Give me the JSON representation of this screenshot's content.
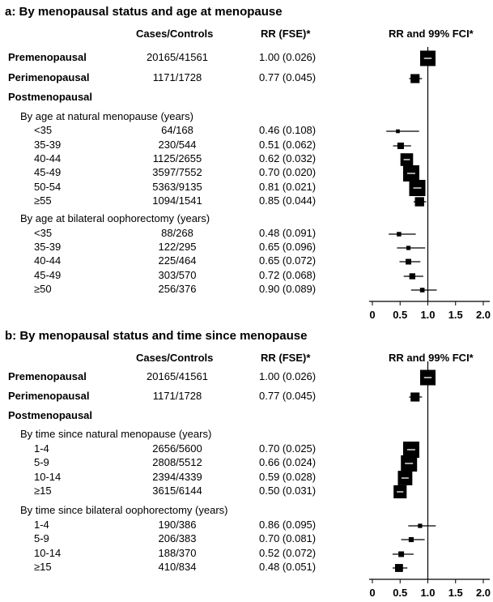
{
  "columns": {
    "cases": "Cases/Controls",
    "rr": "RR (FSE)*",
    "fci": "RR and 99% FCI*"
  },
  "chart_data": [
    {
      "type": "forest",
      "title": "a:  By menopausal status and age at menopause",
      "xlim": [
        0,
        2.0
      ],
      "xticks": [
        "0",
        "0.5",
        "1.0",
        "1.5",
        "2.0"
      ],
      "rows": [
        {
          "label": "Premenopausal",
          "kind": "main",
          "cases": "20165/41561",
          "rr_text": "1.00 (0.026)",
          "rr": 1.0,
          "fse": 0.026
        },
        {
          "label": "Perimenopausal",
          "kind": "main",
          "cases": "1171/1728",
          "rr_text": "0.77 (0.045)",
          "rr": 0.77,
          "fse": 0.045
        },
        {
          "label": "Postmenopausal",
          "kind": "section"
        },
        {
          "label": "By age at natural menopause (years)",
          "kind": "sub"
        },
        {
          "label": "<35",
          "kind": "item",
          "cases": "64/168",
          "rr_text": "0.46 (0.108)",
          "rr": 0.46,
          "fse": 0.108
        },
        {
          "label": "35-39",
          "kind": "item",
          "cases": "230/544",
          "rr_text": "0.51 (0.062)",
          "rr": 0.51,
          "fse": 0.062
        },
        {
          "label": "40-44",
          "kind": "item",
          "cases": "1125/2655",
          "rr_text": "0.62 (0.032)",
          "rr": 0.62,
          "fse": 0.032
        },
        {
          "label": "45-49",
          "kind": "item",
          "cases": "3597/7552",
          "rr_text": "0.70 (0.020)",
          "rr": 0.7,
          "fse": 0.02
        },
        {
          "label": "50-54",
          "kind": "item",
          "cases": "5363/9135",
          "rr_text": "0.81 (0.021)",
          "rr": 0.81,
          "fse": 0.021
        },
        {
          "label": "≥55",
          "kind": "item",
          "cases": "1094/1541",
          "rr_text": "0.85 (0.044)",
          "rr": 0.85,
          "fse": 0.044
        },
        {
          "label": "By age at bilateral oophorectomy (years)",
          "kind": "sub"
        },
        {
          "label": "<35",
          "kind": "item",
          "cases": "88/268",
          "rr_text": "0.48 (0.091)",
          "rr": 0.48,
          "fse": 0.091
        },
        {
          "label": "35-39",
          "kind": "item",
          "cases": "122/295",
          "rr_text": "0.65 (0.096)",
          "rr": 0.65,
          "fse": 0.096
        },
        {
          "label": "40-44",
          "kind": "item",
          "cases": "225/464",
          "rr_text": "0.65 (0.072)",
          "rr": 0.65,
          "fse": 0.072
        },
        {
          "label": "45-49",
          "kind": "item",
          "cases": "303/570",
          "rr_text": "0.72 (0.068)",
          "rr": 0.72,
          "fse": 0.068
        },
        {
          "label": "≥50",
          "kind": "item",
          "cases": "256/376",
          "rr_text": "0.90 (0.089)",
          "rr": 0.9,
          "fse": 0.089
        }
      ]
    },
    {
      "type": "forest",
      "title": "b:  By menopausal status and time since menopause",
      "xlim": [
        0,
        2.0
      ],
      "xticks": [
        "0",
        "0.5",
        "1.0",
        "1.5",
        "2.0"
      ],
      "rows": [
        {
          "label": "Premenopausal",
          "kind": "main",
          "cases": "20165/41561",
          "rr_text": "1.00 (0.026)",
          "rr": 1.0,
          "fse": 0.026
        },
        {
          "label": "Perimenopausal",
          "kind": "main",
          "cases": "1171/1728",
          "rr_text": "0.77 (0.045)",
          "rr": 0.77,
          "fse": 0.045
        },
        {
          "label": "Postmenopausal",
          "kind": "section"
        },
        {
          "label": "By time since natural menopause (years)",
          "kind": "sub"
        },
        {
          "label": "1-4",
          "kind": "item",
          "cases": "2656/5600",
          "rr_text": "0.70 (0.025)",
          "rr": 0.7,
          "fse": 0.025
        },
        {
          "label": "5-9",
          "kind": "item",
          "cases": "2808/5512",
          "rr_text": "0.66 (0.024)",
          "rr": 0.66,
          "fse": 0.024
        },
        {
          "label": "10-14",
          "kind": "item",
          "cases": "2394/4339",
          "rr_text": "0.59 (0.028)",
          "rr": 0.59,
          "fse": 0.028
        },
        {
          "label": "≥15",
          "kind": "item",
          "cases": "3615/6144",
          "rr_text": "0.50 (0.031)",
          "rr": 0.5,
          "fse": 0.031
        },
        {
          "label": "By time since bilateral oophorectomy (years)",
          "kind": "sub"
        },
        {
          "label": "1-4",
          "kind": "item",
          "cases": "190/386",
          "rr_text": "0.86 (0.095)",
          "rr": 0.86,
          "fse": 0.095
        },
        {
          "label": "5-9",
          "kind": "item",
          "cases": "206/383",
          "rr_text": "0.70 (0.081)",
          "rr": 0.7,
          "fse": 0.081
        },
        {
          "label": "10-14",
          "kind": "item",
          "cases": "188/370",
          "rr_text": "0.52 (0.072)",
          "rr": 0.52,
          "fse": 0.072
        },
        {
          "label": "≥15",
          "kind": "item",
          "cases": "410/834",
          "rr_text": "0.48 (0.051)",
          "rr": 0.48,
          "fse": 0.051
        }
      ]
    }
  ]
}
